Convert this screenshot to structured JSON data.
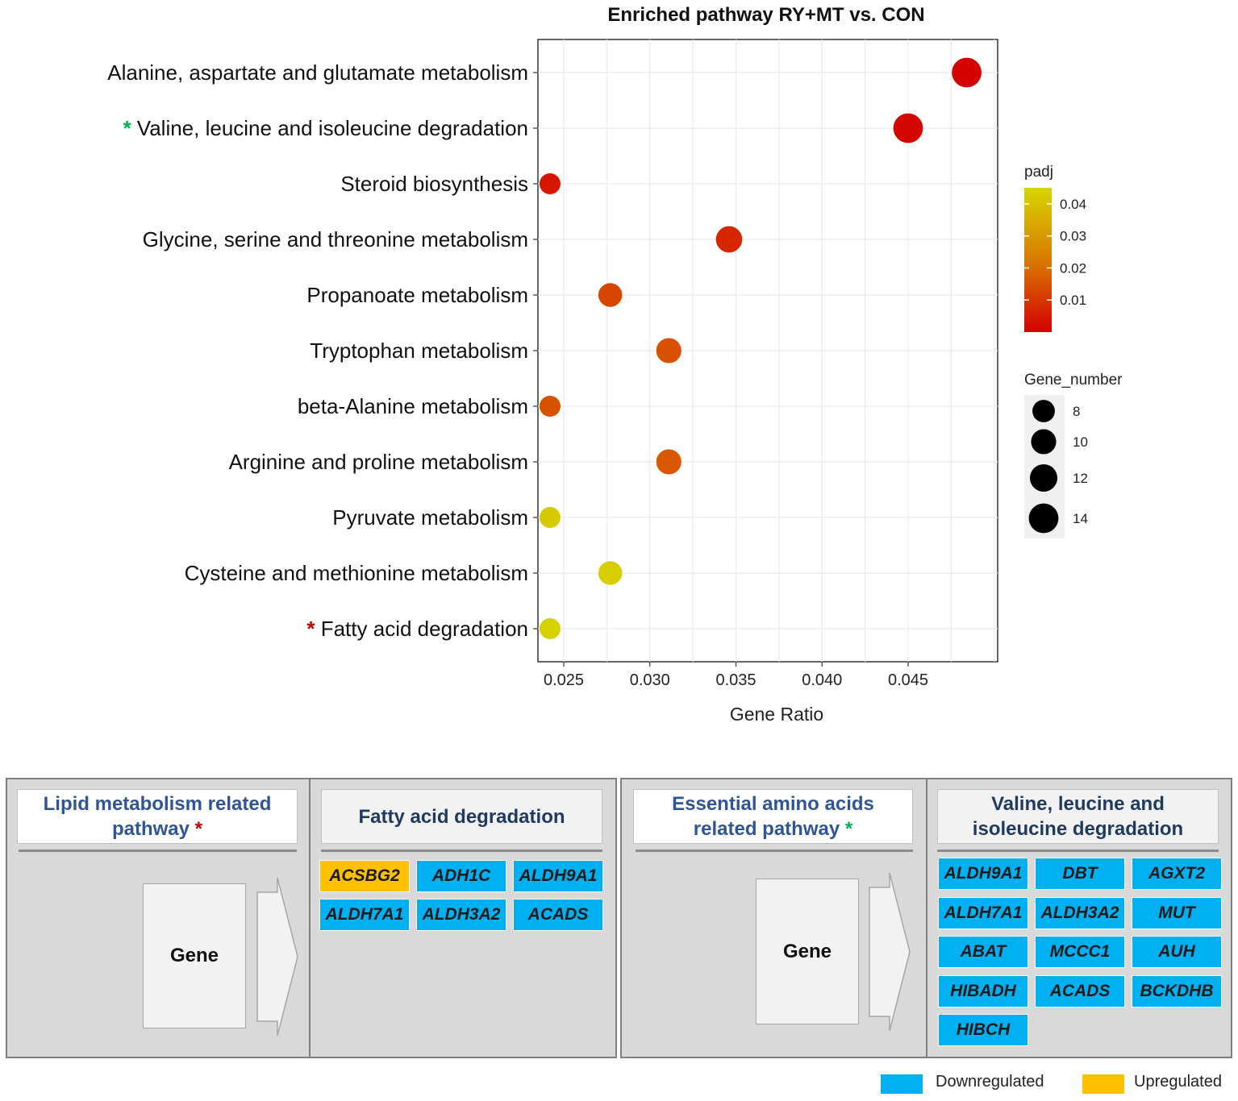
{
  "chart_data": {
    "type": "scatter",
    "title": "Enriched pathway RY+MT vs. CON",
    "xlabel": "Gene Ratio",
    "ylabel": "",
    "xlim": [
      0.0235,
      0.0502
    ],
    "xticks": [
      "0.025",
      "0.030",
      "0.035",
      "0.040",
      "0.045"
    ],
    "xtick_values": [
      0.025,
      0.03,
      0.035,
      0.04,
      0.045
    ],
    "grid": true,
    "points": [
      {
        "pathway": "Alanine, aspartate and glutamate metabolism",
        "star": "",
        "gene_ratio": 0.0484,
        "gene_number": 14,
        "padj": 0.0005
      },
      {
        "pathway": "Valine, leucine and isoleucine degradation",
        "star": "*",
        "star_color": "#00b050",
        "gene_ratio": 0.045,
        "gene_number": 14,
        "padj": 0.0012
      },
      {
        "pathway": "Steroid biosynthesis",
        "star": "",
        "gene_ratio": 0.0242,
        "gene_number": 7,
        "padj": 0.004
      },
      {
        "pathway": "Glycine, serine and threonine metabolism",
        "star": "",
        "gene_ratio": 0.0346,
        "gene_number": 11,
        "padj": 0.007
      },
      {
        "pathway": "Propanoate metabolism",
        "star": "",
        "gene_ratio": 0.0277,
        "gene_number": 9,
        "padj": 0.013
      },
      {
        "pathway": "Tryptophan metabolism",
        "star": "",
        "gene_ratio": 0.0311,
        "gene_number": 10,
        "padj": 0.015
      },
      {
        "pathway": "beta-Alanine metabolism",
        "star": "",
        "gene_ratio": 0.0242,
        "gene_number": 7,
        "padj": 0.015
      },
      {
        "pathway": "Arginine and proline metabolism",
        "star": "",
        "gene_ratio": 0.0311,
        "gene_number": 10,
        "padj": 0.016
      },
      {
        "pathway": "Pyruvate metabolism",
        "star": "",
        "gene_ratio": 0.0242,
        "gene_number": 7,
        "padj": 0.042
      },
      {
        "pathway": "Cysteine and methionine metabolism",
        "star": "",
        "gene_ratio": 0.0277,
        "gene_number": 9,
        "padj": 0.043
      },
      {
        "pathway": "Fatty acid degradation",
        "star": "*",
        "star_color": "#c00000",
        "gene_ratio": 0.0242,
        "gene_number": 7,
        "padj": 0.044
      }
    ],
    "color_legend": {
      "title": "padj",
      "ticks": [
        0.04,
        0.03,
        0.02,
        0.01
      ],
      "tick_labels": [
        "0.04",
        "0.03",
        "0.02",
        "0.01"
      ],
      "range": [
        0.0,
        0.045
      ],
      "low_color": "#d40000",
      "mid_color": "#d97a00",
      "high_color": "#d6d600"
    },
    "size_legend": {
      "title": "Gene_number",
      "values": [
        8,
        10,
        12,
        14
      ],
      "labels": [
        "8",
        "10",
        "12",
        "14"
      ]
    }
  },
  "panels": {
    "lipid": {
      "category_line1": "Lipid metabolism  related",
      "category_line2": "pathway",
      "star": "*",
      "pathway_title": "Fatty acid degradation",
      "gene_label": "Gene",
      "genes": [
        {
          "name": "ACSBG2",
          "status": "up"
        },
        {
          "name": "ADH1C",
          "status": "down"
        },
        {
          "name": "ALDH9A1",
          "status": "down"
        },
        {
          "name": "ALDH7A1",
          "status": "down"
        },
        {
          "name": "ALDH3A2",
          "status": "down"
        },
        {
          "name": "ACADS",
          "status": "down"
        }
      ]
    },
    "amino": {
      "category_line1": "Essential amino acids",
      "category_line2": "related pathway",
      "star": "*",
      "pathway_title_line1": "Valine, leucine and",
      "pathway_title_line2": "isoleucine degradation",
      "gene_label": "Gene",
      "genes": [
        {
          "name": "ALDH9A1",
          "status": "down"
        },
        {
          "name": "DBT",
          "status": "down"
        },
        {
          "name": "AGXT2",
          "status": "down"
        },
        {
          "name": "ALDH7A1",
          "status": "down"
        },
        {
          "name": "ALDH3A2",
          "status": "down"
        },
        {
          "name": "MUT",
          "status": "down"
        },
        {
          "name": "ABAT",
          "status": "down"
        },
        {
          "name": "MCCC1",
          "status": "down"
        },
        {
          "name": "AUH",
          "status": "down"
        },
        {
          "name": "HIBADH",
          "status": "down"
        },
        {
          "name": "ACADS",
          "status": "down"
        },
        {
          "name": "BCKDHB",
          "status": "down"
        },
        {
          "name": "HIBCH",
          "status": "down"
        }
      ]
    }
  },
  "legend": {
    "down_label": "Downregulated",
    "up_label": "Upregulated",
    "down_color": "#00b0f0",
    "up_color": "#ffc000"
  }
}
